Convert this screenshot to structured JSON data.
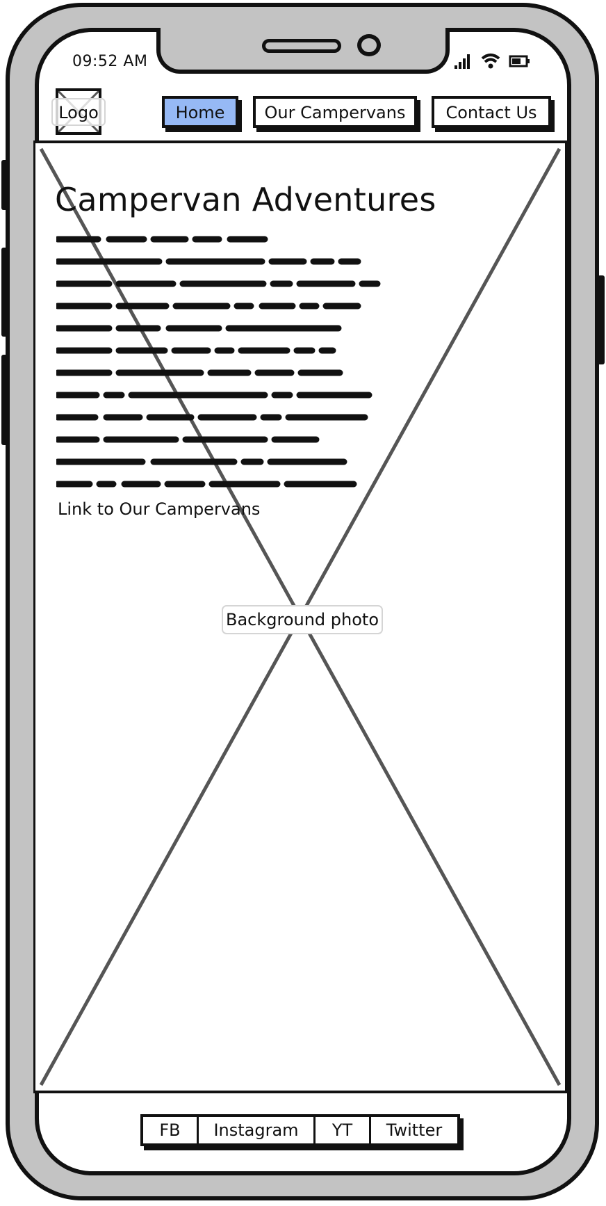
{
  "status_bar": {
    "time": "09:52 AM",
    "icons": [
      "signal-icon",
      "wifi-icon",
      "battery-icon"
    ]
  },
  "header": {
    "logo_label": "Logo",
    "nav": [
      {
        "label": "Home",
        "active": true
      },
      {
        "label": "Our Campervans",
        "active": false
      },
      {
        "label": "Contact Us",
        "active": false
      }
    ]
  },
  "hero": {
    "title": "Campervan Adventures",
    "link_label": "Link to Our Campervans",
    "background_label": "Background photo"
  },
  "footer": {
    "social": [
      {
        "label": "FB"
      },
      {
        "label": "Instagram"
      },
      {
        "label": "YT"
      },
      {
        "label": "Twitter"
      }
    ]
  },
  "colors": {
    "active_nav": "#96b9f5",
    "phone_frame": "#c3c3c3",
    "outline": "#111111"
  }
}
